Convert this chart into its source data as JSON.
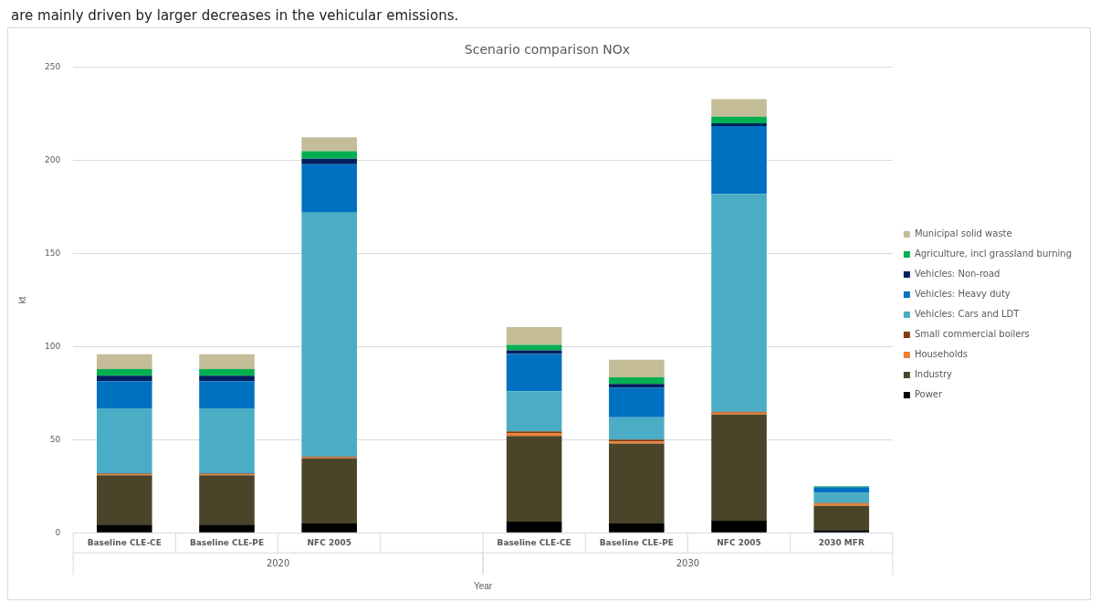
{
  "chart_data": {
    "type": "bar",
    "title": "Scenario comparison NOx",
    "xlabel": "Year",
    "ylabel": "kt",
    "annotations": [
      "are mainly driven by larger decreases in the vehicular emissions.",
      "2020",
      "2030"
    ],
    "categories": [
      "Baseline CLE-CE",
      "Baseline CLE-PE",
      "NFC 2005",
      null,
      "Baseline CLE-CE",
      "Baseline CLE-PE",
      "NFC 2005",
      "2030 MFR"
    ],
    "stacked": true,
    "ylim": [
      0,
      250
    ],
    "yticks": [
      0,
      50,
      100,
      150,
      200,
      250
    ],
    "grid": "y",
    "legend": "right",
    "series": [
      {
        "name": "Power",
        "color": "#000000",
        "values": [
          4.4,
          4.4,
          5,
          null,
          6,
          5,
          6.5,
          1.5
        ]
      },
      {
        "name": "Industry",
        "color": "#4a4528",
        "values": [
          26.5,
          26.5,
          35,
          null,
          46,
          43,
          57,
          13
        ]
      },
      {
        "name": "Households",
        "color": "#ed7d31",
        "values": [
          0.5,
          0.5,
          0.5,
          null,
          1.5,
          1,
          1,
          1
        ]
      },
      {
        "name": "Small commercial boilers",
        "color": "#843c0c",
        "values": [
          0.5,
          0.5,
          0.5,
          null,
          1,
          1,
          0.5,
          0.5
        ]
      },
      {
        "name": "Vehicles: Cars and LDT",
        "color": "#4bacc6",
        "values": [
          35,
          35,
          131,
          null,
          21.5,
          12,
          117,
          5.5
        ]
      },
      {
        "name": "Vehicles: Heavy duty",
        "color": "#0070c0",
        "values": [
          14.5,
          14.5,
          26,
          null,
          20,
          16,
          36.5,
          3
        ]
      },
      {
        "name": "Vehicles: Non-road",
        "color": "#002060",
        "values": [
          3,
          3,
          3,
          null,
          2,
          2,
          1.5,
          null
        ]
      },
      {
        "name": "Agriculture, incl grassland burning",
        "color": "#00b050",
        "values": [
          3.5,
          3.5,
          4,
          null,
          3,
          3.5,
          3.5,
          0.5
        ]
      },
      {
        "name": "Municipal solid waste",
        "color": "#c4bd97",
        "values": [
          8,
          8,
          7.5,
          null,
          9.5,
          9.5,
          9.5,
          0
        ]
      }
    ]
  }
}
